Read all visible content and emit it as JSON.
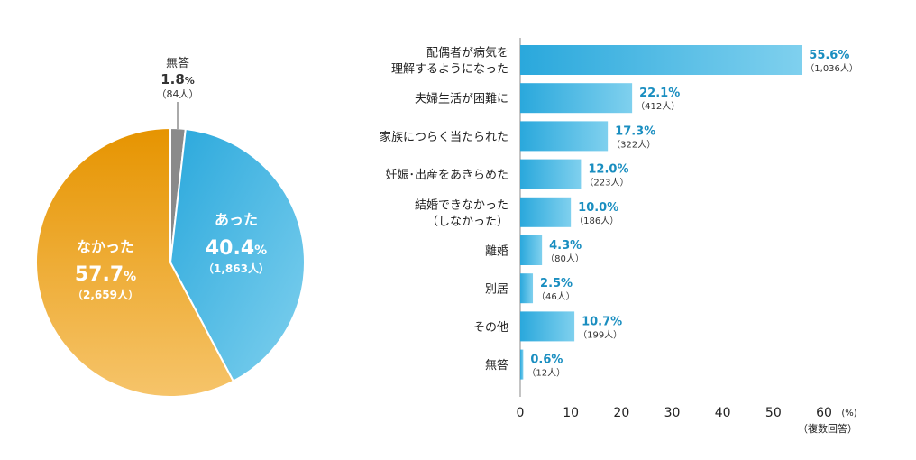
{
  "chart_data": [
    {
      "type": "pie",
      "slices": [
        {
          "label": "あった",
          "percent": 40.4,
          "count": "（1,863人）",
          "pct_num": "40.4",
          "pct_unit": "%",
          "color_from": "#2aa8dc",
          "color_to": "#7fd0ee"
        },
        {
          "label": "なかった",
          "percent": 57.7,
          "count": "（2,659人）",
          "pct_num": "57.7",
          "pct_unit": "%",
          "color_from": "#e69400",
          "color_to": "#f6c46a"
        },
        {
          "label": "無答",
          "percent": 1.8,
          "count": "（84人）",
          "pct_num": "1.8",
          "pct_unit": "%",
          "color_from": "#8a8a8a",
          "color_to": "#8a8a8a"
        }
      ]
    },
    {
      "type": "bar",
      "orientation": "horizontal",
      "categories": [
        [
          "配偶者が病気を",
          "理解するようになった"
        ],
        [
          "夫婦生活が困難に"
        ],
        [
          "家族につらく当たられた"
        ],
        [
          "妊娠･出産をあきらめた"
        ],
        [
          "結婚できなかった",
          "（しなかった）"
        ],
        [
          "離婚"
        ],
        [
          "別居"
        ],
        [
          "その他"
        ],
        [
          "無答"
        ]
      ],
      "values": [
        55.6,
        22.1,
        17.3,
        12.0,
        10.0,
        4.3,
        2.5,
        10.7,
        0.6
      ],
      "value_labels": [
        "55.6%",
        "22.1%",
        "17.3%",
        "12.0%",
        "10.0%",
        "4.3%",
        "2.5%",
        "10.7%",
        "0.6%"
      ],
      "count_labels": [
        "（1,036人）",
        "（412人）",
        "（322人）",
        "（223人）",
        "（186人）",
        "（80人）",
        "（46人）",
        "（199人）",
        "（12人）"
      ],
      "xlim": [
        0,
        60
      ],
      "ticks": [
        "0",
        "10",
        "20",
        "30",
        "40",
        "50",
        "60"
      ],
      "unit_label": "(%)",
      "note": "（複数回答）",
      "bar_color_from": "#2aa8dc",
      "bar_color_to": "#7fd0ee",
      "value_color": "#1a8ec0"
    }
  ]
}
